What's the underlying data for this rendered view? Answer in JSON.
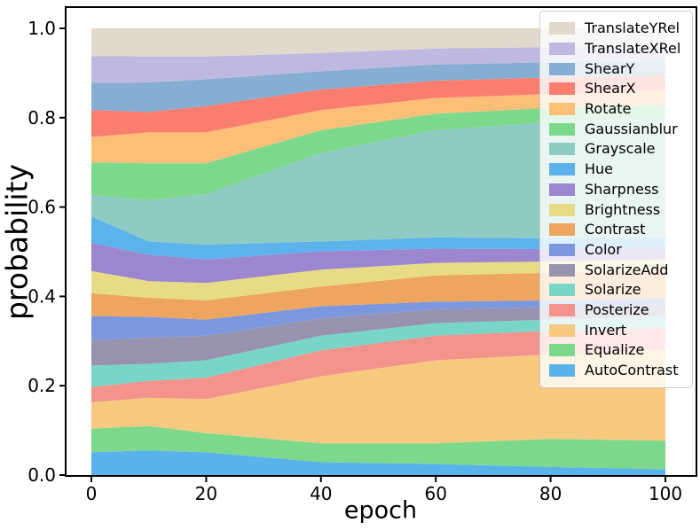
{
  "chart_data": {
    "type": "area",
    "stacked": true,
    "xlabel": "epoch",
    "ylabel": "probability",
    "x": [
      0,
      10,
      20,
      40,
      60,
      80,
      100
    ],
    "xlim": [
      0,
      100
    ],
    "ylim": [
      0,
      1.05
    ],
    "grid": false,
    "legend_position": "upper right",
    "legend_order": "top band listed first",
    "x_tick_values": [
      0,
      20,
      40,
      60,
      80,
      100
    ],
    "x_tick_labels": [
      "0",
      "20",
      "40",
      "60",
      "80",
      "100"
    ],
    "y_tick_values": [
      0,
      0.2,
      0.4,
      0.6,
      0.8,
      1.0
    ],
    "y_tick_labels": [
      "0.0",
      "0.2",
      "0.4",
      "0.6",
      "0.8",
      "1.0"
    ],
    "series": [
      {
        "name": "AutoContrast",
        "color": "#59b3ea",
        "values": [
          0.051,
          0.055,
          0.051,
          0.029,
          0.025,
          0.018,
          0.013
        ]
      },
      {
        "name": "Equalize",
        "color": "#7cd98c",
        "values": [
          0.053,
          0.055,
          0.043,
          0.042,
          0.046,
          0.063,
          0.064
        ]
      },
      {
        "name": "Invert",
        "color": "#f6c97f",
        "values": [
          0.059,
          0.063,
          0.076,
          0.15,
          0.186,
          0.189,
          0.203
        ]
      },
      {
        "name": "Posterize",
        "color": "#f4928c",
        "values": [
          0.034,
          0.038,
          0.048,
          0.058,
          0.055,
          0.053,
          0.05
        ]
      },
      {
        "name": "Solarize",
        "color": "#79d5c8",
        "values": [
          0.048,
          0.038,
          0.039,
          0.033,
          0.028,
          0.025,
          0.025
        ]
      },
      {
        "name": "SolarizeAdd",
        "color": "#9793ae",
        "values": [
          0.057,
          0.059,
          0.055,
          0.039,
          0.031,
          0.028,
          0.025
        ]
      },
      {
        "name": "Color",
        "color": "#7b97e0",
        "values": [
          0.054,
          0.046,
          0.036,
          0.027,
          0.017,
          0.015,
          0.015
        ]
      },
      {
        "name": "Contrast",
        "color": "#eda55f",
        "values": [
          0.051,
          0.043,
          0.043,
          0.044,
          0.059,
          0.062,
          0.065
        ]
      },
      {
        "name": "Brightness",
        "color": "#e7dc85",
        "values": [
          0.05,
          0.037,
          0.039,
          0.038,
          0.028,
          0.025,
          0.023
        ]
      },
      {
        "name": "Sharpness",
        "color": "#9b86cf",
        "values": [
          0.063,
          0.059,
          0.053,
          0.041,
          0.032,
          0.028,
          0.027
        ]
      },
      {
        "name": "Hue",
        "color": "#5cb3ec",
        "values": [
          0.059,
          0.03,
          0.033,
          0.022,
          0.025,
          0.024,
          0.022
        ]
      },
      {
        "name": "Grayscale",
        "color": "#8dcbc3",
        "values": [
          0.048,
          0.092,
          0.113,
          0.198,
          0.24,
          0.26,
          0.268
        ]
      },
      {
        "name": "Gaussianblur",
        "color": "#7cd98c",
        "values": [
          0.073,
          0.083,
          0.069,
          0.051,
          0.037,
          0.032,
          0.03
        ]
      },
      {
        "name": "Rotate",
        "color": "#fdbf78",
        "values": [
          0.057,
          0.069,
          0.069,
          0.045,
          0.035,
          0.031,
          0.03
        ]
      },
      {
        "name": "ShearX",
        "color": "#f97e70",
        "values": [
          0.06,
          0.046,
          0.059,
          0.046,
          0.039,
          0.037,
          0.035
        ]
      },
      {
        "name": "ShearY",
        "color": "#85aed2",
        "values": [
          0.061,
          0.066,
          0.06,
          0.041,
          0.036,
          0.034,
          0.033
        ]
      },
      {
        "name": "TranslateXRel",
        "color": "#bfb8e0",
        "values": [
          0.06,
          0.058,
          0.051,
          0.041,
          0.036,
          0.034,
          0.032
        ]
      },
      {
        "name": "TranslateYRel",
        "color": "#e2d8cb",
        "values": [
          0.062,
          0.063,
          0.063,
          0.055,
          0.045,
          0.042,
          0.04
        ]
      }
    ]
  }
}
